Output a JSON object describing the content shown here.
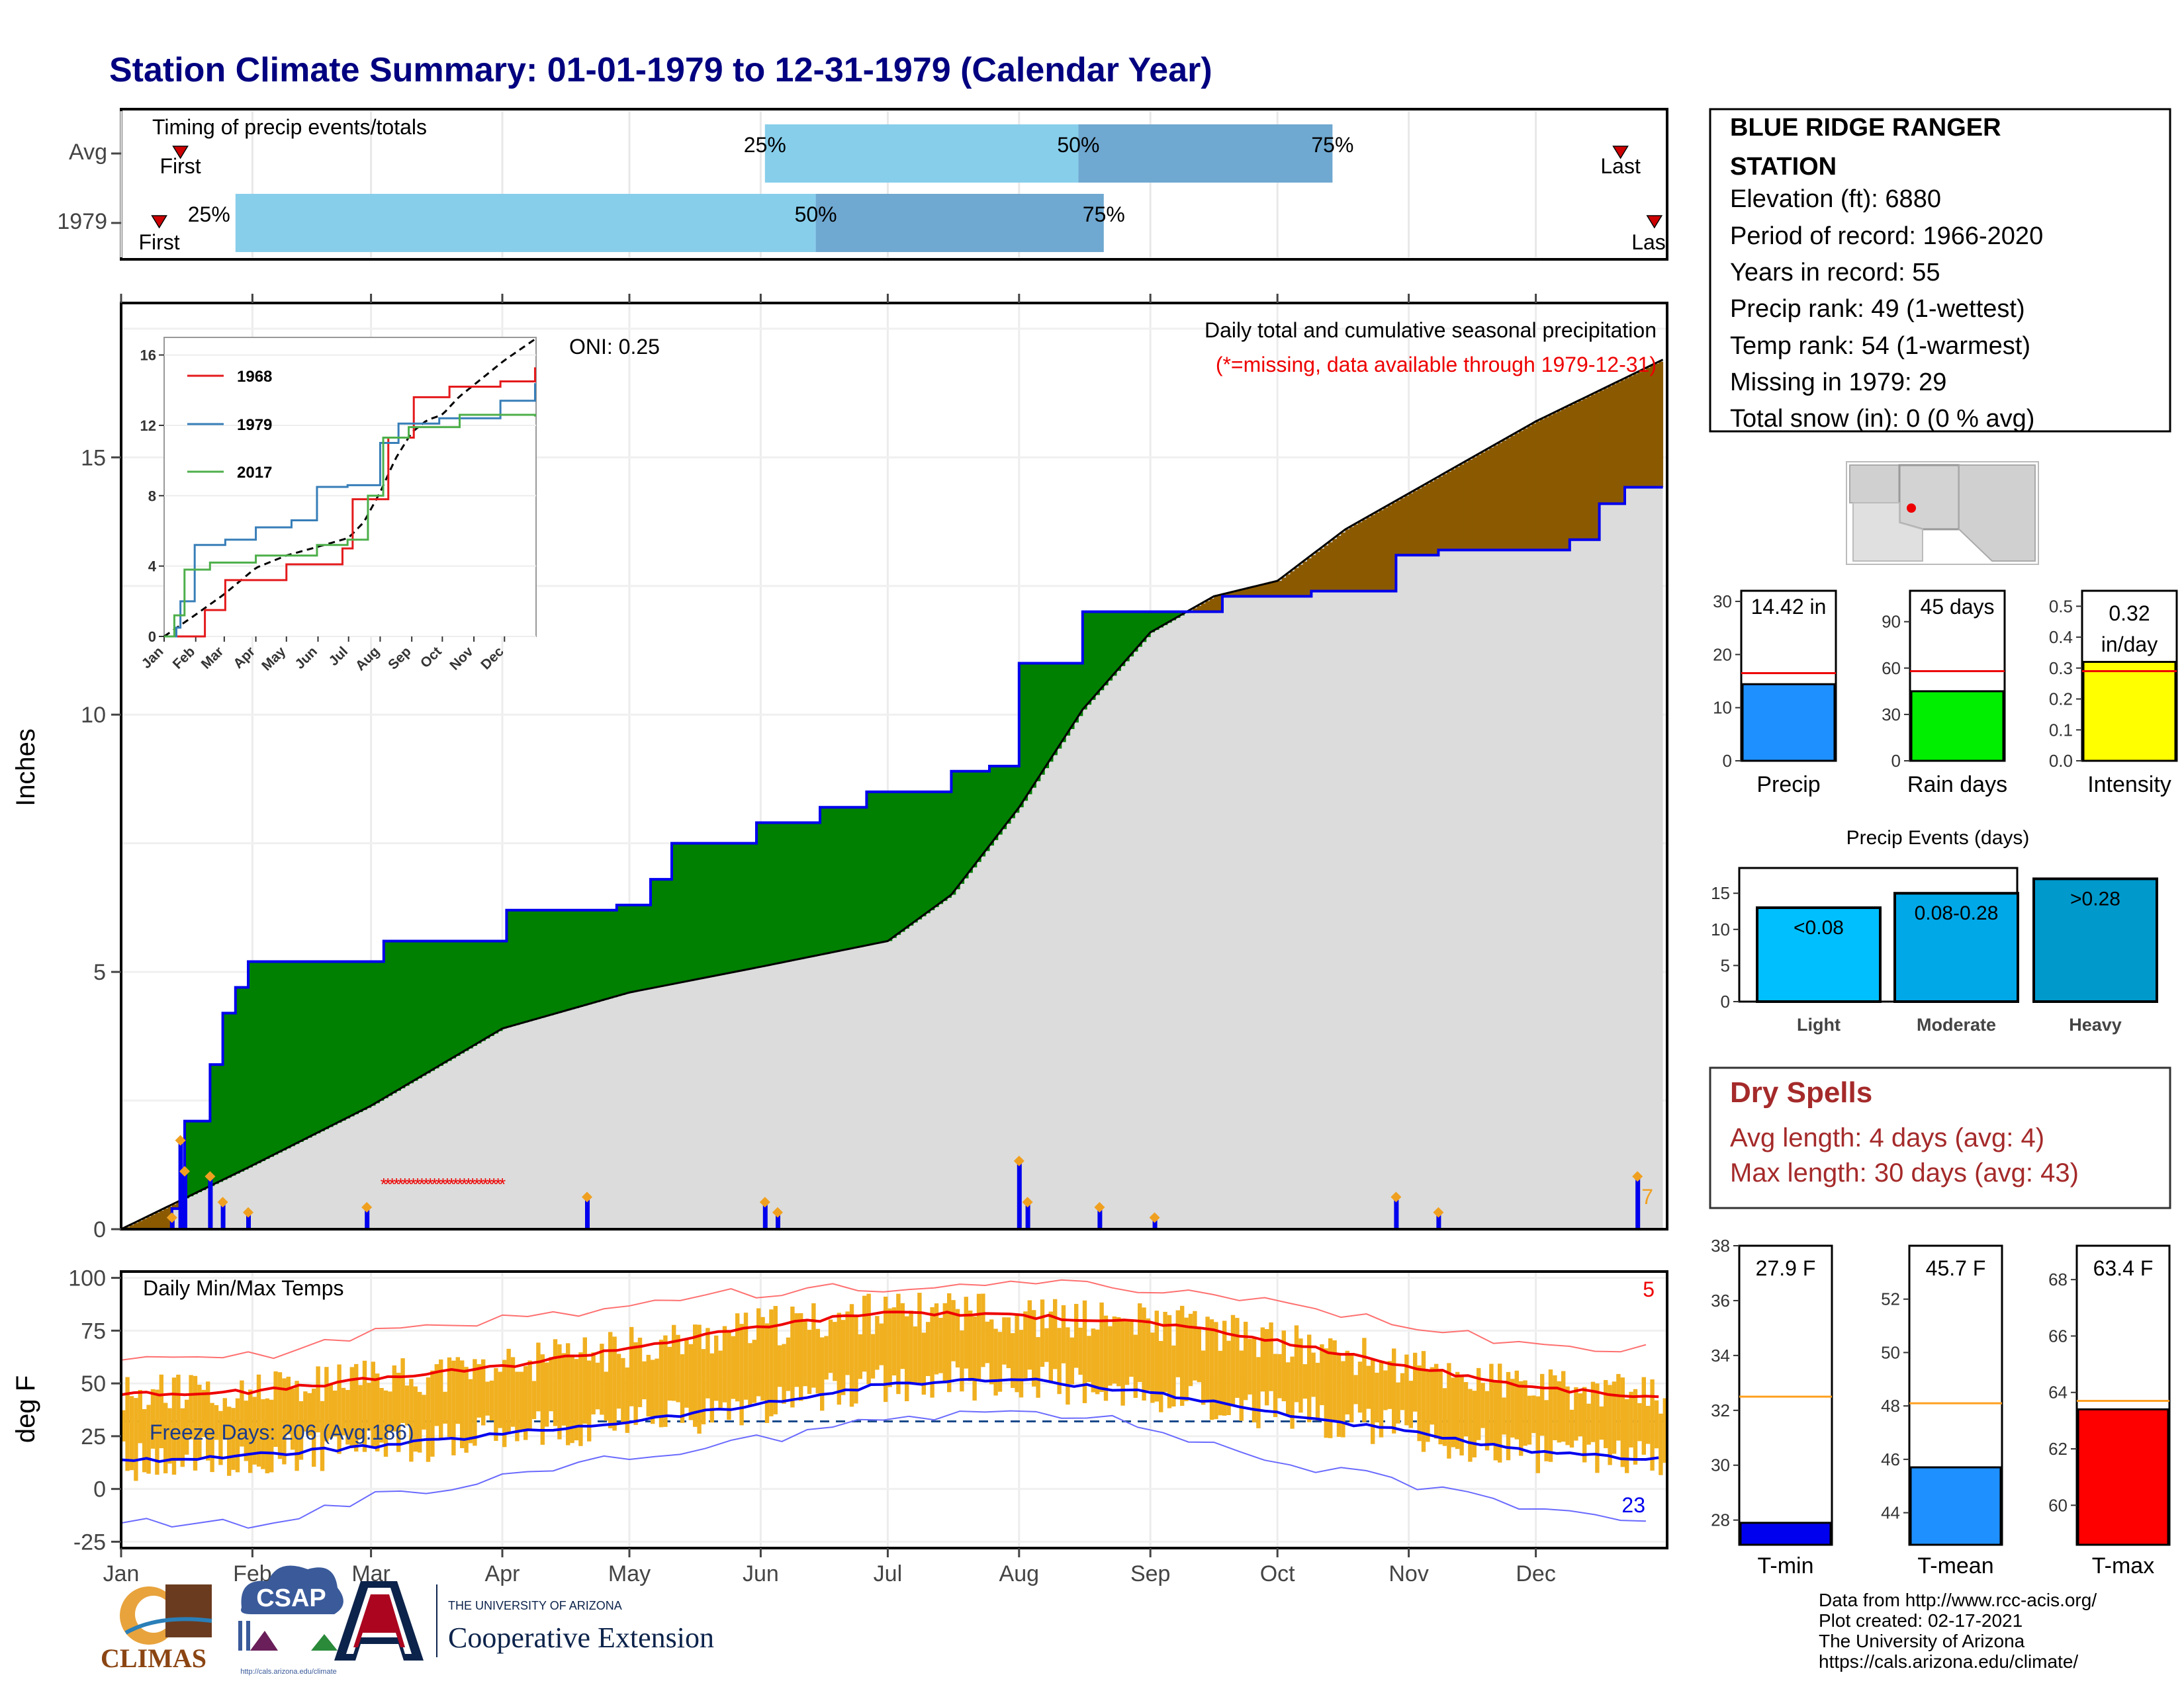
{
  "title": "Station Climate Summary: 01-01-1979 to 12-31-1979 (Calendar Year)",
  "months": [
    "Jan",
    "Feb",
    "Mar",
    "Apr",
    "May",
    "Jun",
    "Jul",
    "Aug",
    "Sep",
    "Oct",
    "Nov",
    "Dec"
  ],
  "timing_panel": {
    "title": "Timing of precip events/totals",
    "rows": [
      {
        "label": "Avg",
        "first_day": 14,
        "p25_day": 152,
        "p50_day": 226,
        "p75_day": 286,
        "last_day": 354
      },
      {
        "label": "1979",
        "first_day": 9,
        "p25_day": 27,
        "p50_day": 164,
        "p75_day": 232,
        "last_day": 362
      }
    ],
    "first_label": "First",
    "last_label": "Last",
    "last_label_clipped": "Las",
    "pct_labels": [
      "25%",
      "50%",
      "75%"
    ],
    "colors": {
      "light": "#87ceeb",
      "dark": "#6fa8d0",
      "marker": "#cc0000"
    }
  },
  "precip_panel": {
    "ylabel": "Inches",
    "yticks": [
      0,
      5,
      10,
      15
    ],
    "ylim": [
      0,
      18
    ],
    "annotation_title": "Daily total and cumulative seasonal precipitation",
    "annotation_missing": "(*=missing, data available through 1979-12-31)",
    "oni": "ONI: 0.25",
    "corner_count": "7"
  },
  "inset": {
    "yticks": [
      "0",
      "4",
      "8",
      "12",
      "16"
    ],
    "xticks": [
      "Jan",
      "Feb",
      "Mar",
      "Apr",
      "May",
      "Jun",
      "Jul",
      "Aug",
      "Sep",
      "Oct",
      "Nov",
      "Dec"
    ],
    "legend": [
      "1968",
      "1979",
      "2017"
    ]
  },
  "temp_panel": {
    "ylabel": "deg F",
    "title": "Daily Min/Max Temps",
    "yticks": [
      -25,
      0,
      25,
      50,
      75,
      100
    ],
    "freeze_text": "Freeze Days: 206 (Avg:186)",
    "top_count": "5",
    "bottom_count": "23"
  },
  "station": {
    "name_line1": "BLUE RIDGE RANGER",
    "name_line2": "STATION",
    "elevation": "Elevation (ft): 6880",
    "period": "Period of record: 1966-2020",
    "years": "Years in record: 55",
    "precip_rank": "Precip rank: 49 (1-wettest)",
    "temp_rank": "Temp rank: 54 (1-warmest)",
    "missing": "Missing in 1979: 29",
    "snow": "Total snow (in): 0 (0 % avg)"
  },
  "mini_bars": [
    {
      "label": "Precip",
      "value_text": "14.42 in",
      "value": 14.42,
      "avg": 16.5,
      "ymax": 32,
      "yticks": [
        "0",
        "10",
        "20",
        "30"
      ],
      "color": "#1e90ff"
    },
    {
      "label": "Rain days",
      "value_text": "45 days",
      "value": 45,
      "avg": 58,
      "ymax": 110,
      "yticks": [
        "0",
        "30",
        "60",
        "90"
      ],
      "color": "#00ee00"
    },
    {
      "label": "Intensity",
      "value_text": "0.32",
      "value_text2": "in/day",
      "value": 0.32,
      "avg": 0.29,
      "ymax": 0.55,
      "yticks": [
        "0.0",
        "0.1",
        "0.2",
        "0.3",
        "0.4",
        "0.5"
      ],
      "color": "#ffff00"
    }
  ],
  "events": {
    "title": "Precip Events (days)",
    "yticks": [
      "0",
      "5",
      "10",
      "15"
    ],
    "bars": [
      {
        "category": "Light",
        "inner": "<0.08",
        "value": 13,
        "color": "#00bfff"
      },
      {
        "category": "Moderate",
        "inner": "0.08-0.28",
        "value": 15,
        "color": "#00a8e8"
      },
      {
        "category": "Heavy",
        "inner": ">0.28",
        "value": 17,
        "color": "#0099cc"
      }
    ]
  },
  "dry_spells": {
    "title": "Dry Spells",
    "avg": "Avg length: 4 days (avg: 4)",
    "max": "Max length: 30 days (avg: 43)"
  },
  "temp_bars": [
    {
      "label": "T-min",
      "value_text": "27.9 F",
      "value": 27.9,
      "avg": 32.5,
      "ymin": 27.1,
      "ymax": 38,
      "yticks": [
        "28",
        "30",
        "32",
        "34",
        "36",
        "38"
      ],
      "color": "#0000ee"
    },
    {
      "label": "T-mean",
      "value_text": "45.7 F",
      "value": 45.7,
      "avg": 48.1,
      "ymin": 42.8,
      "ymax": 54,
      "yticks": [
        "44",
        "46",
        "48",
        "50",
        "52"
      ],
      "color": "#1e90ff"
    },
    {
      "label": "T-max",
      "value_text": "63.4 F",
      "value": 63.4,
      "avg": 63.7,
      "ymin": 58.6,
      "ymax": 69.2,
      "yticks": [
        "60",
        "62",
        "64",
        "66",
        "68"
      ],
      "color": "#ff0000"
    }
  ],
  "footer": {
    "line1": "Data from http://www.rcc-acis.org/",
    "line2": "Plot created: 02-17-2021",
    "line3": "The University of Arizona",
    "line4": "https://cals.arizona.edu/climate/"
  },
  "logos": {
    "climas": "CLIMAS",
    "csap": "CSAP",
    "csap_url": "http://cals.arizona.edu/climate",
    "ua_small": "THE UNIVERSITY OF ARIZONA",
    "ua_big": "Cooperative Extension"
  },
  "chart_data": [
    {
      "type": "area",
      "title": "Daily total and cumulative seasonal precipitation",
      "ylabel": "Inches",
      "ylim": [
        0,
        18
      ],
      "series": [
        {
          "name": "avg_cumulative",
          "x_day": [
            0,
            30,
            59,
            90,
            120,
            151,
            181,
            196,
            212,
            227,
            243,
            258,
            273,
            289,
            304,
            319,
            334,
            349,
            364
          ],
          "values": [
            0,
            1.2,
            2.4,
            3.9,
            4.6,
            5.1,
            5.6,
            6.5,
            8.2,
            10.1,
            11.6,
            12.3,
            12.6,
            13.6,
            14.3,
            15.0,
            15.7,
            16.3,
            16.9
          ]
        },
        {
          "name": "1979_cumulative",
          "x_day": [
            0,
            12,
            15,
            21,
            24,
            27,
            30,
            58,
            62,
            85,
            91,
            110,
            117,
            122,
            125,
            130,
            150,
            165,
            168,
            176,
            180,
            185,
            193,
            196,
            205,
            212,
            227,
            244,
            260,
            281,
            299,
            301,
            311,
            342,
            349,
            355,
            360,
            364
          ],
          "values": [
            0,
            0.4,
            2.1,
            3.2,
            4.2,
            4.7,
            5.2,
            5.2,
            5.6,
            5.6,
            6.2,
            6.2,
            6.3,
            6.3,
            6.8,
            7.5,
            7.9,
            8.2,
            8.2,
            8.5,
            8.5,
            8.5,
            8.5,
            8.9,
            9.0,
            11.0,
            12.0,
            12.0,
            12.3,
            12.4,
            12.4,
            13.1,
            13.2,
            13.4,
            14.1,
            14.42,
            14.42,
            14.42
          ]
        }
      ],
      "daily_precip_in": [
        {
          "day": 12,
          "value": 0.2
        },
        {
          "day": 14,
          "value": 1.7
        },
        {
          "day": 15,
          "value": 1.1
        },
        {
          "day": 21,
          "value": 1.0
        },
        {
          "day": 24,
          "value": 0.5
        },
        {
          "day": 30,
          "value": 0.3
        },
        {
          "day": 58,
          "value": 0.4
        },
        {
          "day": 110,
          "value": 0.6
        },
        {
          "day": 152,
          "value": 0.5
        },
        {
          "day": 155,
          "value": 0.3
        },
        {
          "day": 212,
          "value": 1.3
        },
        {
          "day": 214,
          "value": 0.5
        },
        {
          "day": 231,
          "value": 0.4
        },
        {
          "day": 244,
          "value": 0.2
        },
        {
          "day": 301,
          "value": 0.6
        },
        {
          "day": 311,
          "value": 0.3
        },
        {
          "day": 358,
          "value": 1.0
        }
      ],
      "missing_days": [
        62,
        90
      ]
    },
    {
      "type": "line",
      "title": "Daily Min/Max Temps",
      "ylabel": "deg F",
      "ylim": [
        -28,
        103
      ],
      "series": [
        {
          "name": "avg_max",
          "x_day": [
            0,
            31,
            59,
            90,
            120,
            151,
            181,
            212,
            243,
            273,
            304,
            334,
            364
          ],
          "values": [
            45,
            46,
            52,
            58,
            67,
            77,
            84,
            82,
            79,
            70,
            58,
            48,
            43
          ]
        },
        {
          "name": "avg_min",
          "x_day": [
            0,
            31,
            59,
            90,
            120,
            151,
            181,
            212,
            243,
            273,
            304,
            334,
            364
          ],
          "values": [
            13,
            16,
            20,
            26,
            32,
            40,
            50,
            52,
            46,
            36,
            27,
            17,
            14
          ]
        },
        {
          "name": "record_high",
          "x_day": [
            0,
            31,
            59,
            90,
            120,
            151,
            181,
            212,
            243,
            273,
            304,
            334,
            364
          ],
          "values": [
            62,
            63,
            73,
            80,
            88,
            93,
            96,
            97,
            94,
            87,
            78,
            68,
            67
          ]
        },
        {
          "name": "record_low",
          "x_day": [
            0,
            31,
            59,
            90,
            120,
            151,
            181,
            212,
            243,
            273,
            304,
            334,
            364
          ],
          "values": [
            -15,
            -18,
            -3,
            5,
            15,
            23,
            33,
            40,
            29,
            13,
            3,
            -8,
            -16
          ]
        }
      ],
      "freeze_threshold": 32
    }
  ]
}
